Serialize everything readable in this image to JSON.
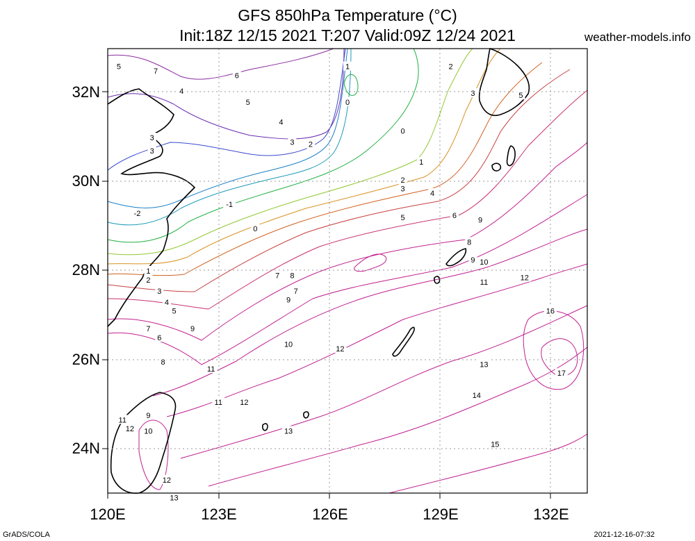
{
  "title": {
    "line1": "GFS 850hPa Temperature (°C)",
    "line2": "Init:18Z 12/15 2021 T:207 Valid:09Z 12/24 2021"
  },
  "site": "weather-models.info",
  "footer": {
    "left": "GrADS/COLA",
    "right": "2021-12-16-07:32"
  },
  "axes": {
    "lat_labels": [
      "32N",
      "30N",
      "28N",
      "26N",
      "24N"
    ],
    "lon_labels": [
      "120E",
      "123E",
      "126E",
      "129E",
      "132E"
    ],
    "lat_range": [
      23,
      33
    ],
    "lon_range": [
      120,
      133
    ],
    "grid": "dotted"
  },
  "contour_labels": [
    {
      "t": "5",
      "lon": 120.3,
      "lat": 32.6,
      "c": "#7a2aa0"
    },
    {
      "t": "7",
      "lon": 121.3,
      "lat": 32.5,
      "c": "#8a2a9a"
    },
    {
      "t": "6",
      "lon": 123.5,
      "lat": 32.4,
      "c": "#7a2aa0"
    },
    {
      "t": "4",
      "lon": 122.0,
      "lat": 32.05,
      "c": "#5a2ab0"
    },
    {
      "t": "5",
      "lon": 123.8,
      "lat": 31.8,
      "c": "#6a2aa8"
    },
    {
      "t": "4",
      "lon": 124.7,
      "lat": 31.35,
      "c": "#5a2ab0"
    },
    {
      "t": "3",
      "lon": 121.2,
      "lat": 31.0,
      "c": "#2a4ad0"
    },
    {
      "t": "3",
      "lon": 121.2,
      "lat": 30.7,
      "c": "#2a4ad0"
    },
    {
      "t": "3",
      "lon": 125.0,
      "lat": 30.9,
      "c": "#1a6ad0"
    },
    {
      "t": "2",
      "lon": 125.5,
      "lat": 30.85,
      "c": "#1a80c8"
    },
    {
      "t": "1",
      "lon": 126.5,
      "lat": 32.6,
      "c": "#1a9ab8"
    },
    {
      "t": "0",
      "lon": 126.5,
      "lat": 31.8,
      "c": "#20b040"
    },
    {
      "t": "0",
      "lon": 128.0,
      "lat": 31.15,
      "c": "#20b040"
    },
    {
      "t": "1",
      "lon": 128.5,
      "lat": 30.45,
      "c": "#90c830"
    },
    {
      "t": "2",
      "lon": 128.0,
      "lat": 30.05,
      "c": "#b8b020"
    },
    {
      "t": "3",
      "lon": 128.0,
      "lat": 29.85,
      "c": "#d89020"
    },
    {
      "t": "4",
      "lon": 128.8,
      "lat": 29.75,
      "c": "#d06020"
    },
    {
      "t": "5",
      "lon": 128.0,
      "lat": 29.2,
      "c": "#c83070"
    },
    {
      "t": "6",
      "lon": 129.4,
      "lat": 29.25,
      "c": "#c83070"
    },
    {
      "t": "9",
      "lon": 130.1,
      "lat": 29.15,
      "c": "#c02090"
    },
    {
      "t": "8",
      "lon": 129.8,
      "lat": 28.65,
      "c": "#c02090"
    },
    {
      "t": "10",
      "lon": 130.2,
      "lat": 28.2,
      "c": "#c02090"
    },
    {
      "t": "9",
      "lon": 129.9,
      "lat": 28.25,
      "c": "#c02090"
    },
    {
      "t": "11",
      "lon": 130.2,
      "lat": 27.75,
      "c": "#c02090"
    },
    {
      "t": "12",
      "lon": 131.3,
      "lat": 27.85,
      "c": "#c02090"
    },
    {
      "t": "16",
      "lon": 132.0,
      "lat": 27.1,
      "c": "#c02090"
    },
    {
      "t": "17",
      "lon": 132.3,
      "lat": 25.7,
      "c": "#c02090"
    },
    {
      "t": "13",
      "lon": 130.2,
      "lat": 25.9,
      "c": "#c02090"
    },
    {
      "t": "14",
      "lon": 130.0,
      "lat": 25.2,
      "c": "#c02090"
    },
    {
      "t": "15",
      "lon": 130.5,
      "lat": 24.1,
      "c": "#c02090"
    },
    {
      "t": "2",
      "lon": 129.3,
      "lat": 32.6,
      "c": "#a0c820"
    },
    {
      "t": "3",
      "lon": 129.9,
      "lat": 32.0,
      "c": "#c86a20"
    },
    {
      "t": "5",
      "lon": 131.2,
      "lat": 31.95,
      "c": "#c83070"
    },
    {
      "t": "-1",
      "lon": 123.3,
      "lat": 29.5,
      "c": "#1a9ab8"
    },
    {
      "t": "0",
      "lon": 124.0,
      "lat": 28.95,
      "c": "#20b040"
    },
    {
      "t": "1",
      "lon": 121.1,
      "lat": 28.0,
      "c": "#90c830"
    },
    {
      "t": "2",
      "lon": 121.1,
      "lat": 27.8,
      "c": "#d89020"
    },
    {
      "t": "3",
      "lon": 121.4,
      "lat": 27.55,
      "c": "#d06020"
    },
    {
      "t": "4",
      "lon": 121.6,
      "lat": 27.3,
      "c": "#c84040"
    },
    {
      "t": "5",
      "lon": 121.8,
      "lat": 27.1,
      "c": "#c83070"
    },
    {
      "t": "7",
      "lon": 121.1,
      "lat": 26.7,
      "c": "#c02090"
    },
    {
      "t": "6",
      "lon": 121.4,
      "lat": 26.5,
      "c": "#c02090"
    },
    {
      "t": "8",
      "lon": 121.5,
      "lat": 25.95,
      "c": "#c02090"
    },
    {
      "t": "9",
      "lon": 122.3,
      "lat": 26.7,
      "c": "#c02090"
    },
    {
      "t": "7",
      "lon": 124.6,
      "lat": 27.9,
      "c": "#c02090"
    },
    {
      "t": "8",
      "lon": 125.0,
      "lat": 27.9,
      "c": "#c02090"
    },
    {
      "t": "7",
      "lon": 125.1,
      "lat": 27.55,
      "c": "#c02090"
    },
    {
      "t": "9",
      "lon": 124.9,
      "lat": 27.35,
      "c": "#c02090"
    },
    {
      "t": "10",
      "lon": 124.9,
      "lat": 26.35,
      "c": "#c02090"
    },
    {
      "t": "12",
      "lon": 126.3,
      "lat": 26.25,
      "c": "#c02090"
    },
    {
      "t": "11",
      "lon": 122.8,
      "lat": 25.8,
      "c": "#c02090"
    },
    {
      "t": "11",
      "lon": 123.0,
      "lat": 25.05,
      "c": "#c02090"
    },
    {
      "t": "12",
      "lon": 123.7,
      "lat": 25.05,
      "c": "#c02090"
    },
    {
      "t": "13",
      "lon": 124.9,
      "lat": 24.4,
      "c": "#c02090"
    },
    {
      "t": "11",
      "lon": 120.4,
      "lat": 24.65,
      "c": "#c02090"
    },
    {
      "t": "12",
      "lon": 120.6,
      "lat": 24.45,
      "c": "#c02090"
    },
    {
      "t": "9",
      "lon": 121.1,
      "lat": 24.75,
      "c": "#c02090"
    },
    {
      "t": "10",
      "lon": 121.1,
      "lat": 24.4,
      "c": "#c02090"
    },
    {
      "t": "12",
      "lon": 121.6,
      "lat": 23.3,
      "c": "#c02090"
    },
    {
      "t": "13",
      "lon": 121.8,
      "lat": 22.9,
      "c": "#c02090"
    },
    {
      "t": "-2",
      "lon": 120.8,
      "lat": 29.3,
      "c": "#1a6ad0"
    }
  ]
}
